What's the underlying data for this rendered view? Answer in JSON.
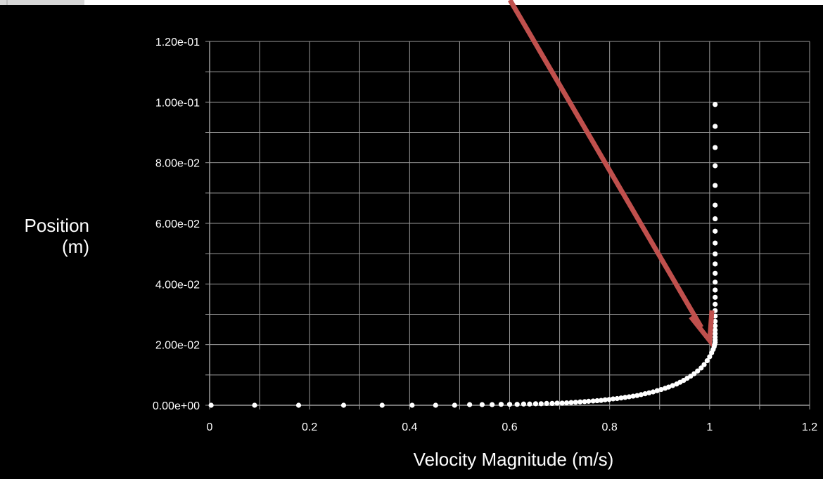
{
  "chart_data": {
    "type": "scatter",
    "title": "",
    "xlabel": "Velocity Magnitude (m/s)",
    "ylabel_line1": "Position",
    "ylabel_line2": "(m)",
    "xlim": [
      0,
      1.2
    ],
    "ylim": [
      0,
      0.12
    ],
    "grid": true,
    "x_ticks": [
      "0",
      "0.2",
      "0.4",
      "0.6",
      "0.8",
      "1",
      "1.2"
    ],
    "y_ticks": [
      "0.00e+00",
      "2.00e-02",
      "4.00e-02",
      "6.00e-02",
      "8.00e-02",
      "1.00e-01",
      "1.20e-01"
    ],
    "colors": {
      "background": "#000000",
      "grid": "#9a9a9a",
      "points": "#ffffff",
      "arrow": "#c0504d"
    },
    "series": [
      {
        "x": [
          0.003,
          0.09,
          0.178,
          0.268,
          0.345,
          0.405,
          0.452,
          0.49,
          0.52,
          0.545,
          0.565,
          0.583,
          0.6,
          0.615,
          0.628,
          0.64,
          0.652,
          0.663,
          0.674,
          0.685,
          0.695,
          0.705,
          0.714,
          0.723,
          0.732,
          0.741,
          0.75,
          0.758,
          0.767,
          0.775,
          0.783,
          0.791,
          0.799,
          0.807,
          0.815,
          0.823,
          0.831,
          0.839,
          0.847,
          0.855,
          0.863,
          0.871,
          0.879,
          0.887,
          0.895,
          0.903,
          0.911,
          0.918,
          0.926,
          0.934,
          0.941,
          0.948,
          0.955,
          0.962,
          0.969,
          0.976,
          0.983,
          0.989,
          0.995,
          1.0,
          1.004,
          1.007,
          1.009,
          1.01,
          1.011,
          1.011,
          1.011,
          1.011,
          1.011,
          1.011,
          1.011,
          1.011,
          1.011,
          1.011,
          1.011,
          1.011,
          1.011,
          1.011,
          1.011,
          1.011,
          1.011,
          1.011,
          1.011,
          1.011,
          1.011,
          1.011,
          1.011,
          1.011,
          1.011
        ],
        "y": [
          0.0,
          0.0,
          0.0,
          0.0,
          0.0,
          0.0,
          0.0,
          0.0,
          0.0002,
          0.0002,
          0.0002,
          0.0003,
          0.0003,
          0.0003,
          0.0004,
          0.0004,
          0.0005,
          0.0005,
          0.0006,
          0.0006,
          0.0007,
          0.0007,
          0.0008,
          0.0009,
          0.001,
          0.0011,
          0.0012,
          0.0013,
          0.0014,
          0.0015,
          0.0016,
          0.0018,
          0.0019,
          0.0021,
          0.0022,
          0.0024,
          0.0026,
          0.0028,
          0.003,
          0.0032,
          0.0035,
          0.0038,
          0.0041,
          0.0044,
          0.0048,
          0.0052,
          0.0056,
          0.006,
          0.0065,
          0.007,
          0.0076,
          0.0082,
          0.0089,
          0.0096,
          0.0104,
          0.0113,
          0.0123,
          0.0134,
          0.0147,
          0.016,
          0.0173,
          0.0184,
          0.0193,
          0.02,
          0.0207,
          0.0215,
          0.0225,
          0.0236,
          0.0248,
          0.0262,
          0.0277,
          0.0294,
          0.0312,
          0.0333,
          0.0356,
          0.038,
          0.0406,
          0.0435,
          0.0466,
          0.0499,
          0.0535,
          0.0574,
          0.0615,
          0.066,
          0.0725,
          0.079,
          0.085,
          0.092,
          0.0992
        ]
      }
    ]
  }
}
